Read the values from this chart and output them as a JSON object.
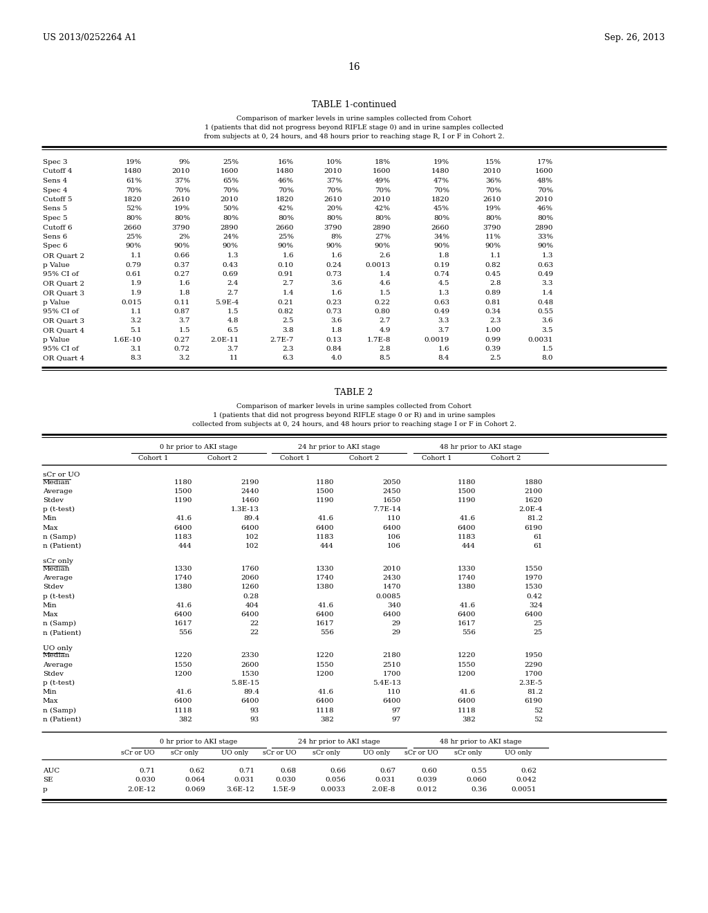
{
  "header_left": "US 2013/0252264 A1",
  "header_right": "Sep. 26, 2013",
  "page_number": "16",
  "table1_title": "TABLE 1-continued",
  "table1_subtitle_lines": [
    "Comparison of marker levels in urine samples collected from Cohort",
    "1 (patients that did not progress beyond RIFLE stage 0) and in urine samples collected",
    "from subjects at 0, 24 hours, and 48 hours prior to reaching stage R, I or F in Cohort 2."
  ],
  "table1_rows": [
    [
      "Spec 3",
      "19%",
      "9%",
      "25%",
      "16%",
      "10%",
      "18%",
      "19%",
      "15%",
      "17%"
    ],
    [
      "Cutoff 4",
      "1480",
      "2010",
      "1600",
      "1480",
      "2010",
      "1600",
      "1480",
      "2010",
      "1600"
    ],
    [
      "Sens 4",
      "61%",
      "37%",
      "65%",
      "46%",
      "37%",
      "49%",
      "47%",
      "36%",
      "48%"
    ],
    [
      "Spec 4",
      "70%",
      "70%",
      "70%",
      "70%",
      "70%",
      "70%",
      "70%",
      "70%",
      "70%"
    ],
    [
      "Cutoff 5",
      "1820",
      "2610",
      "2010",
      "1820",
      "2610",
      "2010",
      "1820",
      "2610",
      "2010"
    ],
    [
      "Sens 5",
      "52%",
      "19%",
      "50%",
      "42%",
      "20%",
      "42%",
      "45%",
      "19%",
      "46%"
    ],
    [
      "Spec 5",
      "80%",
      "80%",
      "80%",
      "80%",
      "80%",
      "80%",
      "80%",
      "80%",
      "80%"
    ],
    [
      "Cutoff 6",
      "2660",
      "3790",
      "2890",
      "2660",
      "3790",
      "2890",
      "2660",
      "3790",
      "2890"
    ],
    [
      "Sens 6",
      "25%",
      "2%",
      "24%",
      "25%",
      "8%",
      "27%",
      "34%",
      "11%",
      "33%"
    ],
    [
      "Spec 6",
      "90%",
      "90%",
      "90%",
      "90%",
      "90%",
      "90%",
      "90%",
      "90%",
      "90%"
    ],
    [
      "OR Quart 2",
      "1.1",
      "0.66",
      "1.3",
      "1.6",
      "1.6",
      "2.6",
      "1.8",
      "1.1",
      "1.3"
    ],
    [
      "p Value",
      "0.79",
      "0.37",
      "0.43",
      "0.10",
      "0.24",
      "0.0013",
      "0.19",
      "0.82",
      "0.63"
    ],
    [
      "95% CI of",
      "0.61",
      "0.27",
      "0.69",
      "0.91",
      "0.73",
      "1.4",
      "0.74",
      "0.45",
      "0.49"
    ],
    [
      "OR Quart 2",
      "1.9",
      "1.6",
      "2.4",
      "2.7",
      "3.6",
      "4.6",
      "4.5",
      "2.8",
      "3.3"
    ],
    [
      "OR Quart 3",
      "1.9",
      "1.8",
      "2.7",
      "1.4",
      "1.6",
      "1.5",
      "1.3",
      "0.89",
      "1.4"
    ],
    [
      "p Value",
      "0.015",
      "0.11",
      "5.9E-4",
      "0.21",
      "0.23",
      "0.22",
      "0.63",
      "0.81",
      "0.48"
    ],
    [
      "95% CI of",
      "1.1",
      "0.87",
      "1.5",
      "0.82",
      "0.73",
      "0.80",
      "0.49",
      "0.34",
      "0.55"
    ],
    [
      "OR Quart 3",
      "3.2",
      "3.7",
      "4.8",
      "2.5",
      "3.6",
      "2.7",
      "3.3",
      "2.3",
      "3.6"
    ],
    [
      "OR Quart 4",
      "5.1",
      "1.5",
      "6.5",
      "3.8",
      "1.8",
      "4.9",
      "3.7",
      "1.00",
      "3.5"
    ],
    [
      "p Value",
      "1.6E-10",
      "0.27",
      "2.0E-11",
      "2.7E-7",
      "0.13",
      "1.7E-8",
      "0.0019",
      "0.99",
      "0.0031"
    ],
    [
      "95% CI of",
      "3.1",
      "0.72",
      "3.7",
      "2.3",
      "0.84",
      "2.8",
      "1.6",
      "0.39",
      "1.5"
    ],
    [
      "OR Quart 4",
      "8.3",
      "3.2",
      "11",
      "6.3",
      "4.0",
      "8.5",
      "8.4",
      "2.5",
      "8.0"
    ]
  ],
  "table2_title": "TABLE 2",
  "table2_subtitle_lines": [
    "Comparison of marker levels in urine samples collected from Cohort",
    "1 (patients that did not progress beyond RIFLE stage 0 or R) and in urine samples",
    "collected from subjects at 0, 24 hours, and 48 hours prior to reaching stage I or F in Cohort 2."
  ],
  "table2_group_headers": [
    "0 hr prior to AKI stage",
    "24 hr prior to AKI stage",
    "48 hr prior to AKI stage"
  ],
  "table2_cohort_headers": [
    "Cohort 1",
    "Cohort 2",
    "Cohort 1",
    "Cohort 2",
    "Cohort 1",
    "Cohort 2"
  ],
  "table2_sections": [
    {
      "name": "sCr or UO",
      "rows": [
        [
          "Median",
          "1180",
          "2190",
          "1180",
          "2050",
          "1180",
          "1880"
        ],
        [
          "Average",
          "1500",
          "2440",
          "1500",
          "2450",
          "1500",
          "2100"
        ],
        [
          "Stdev",
          "1190",
          "1460",
          "1190",
          "1650",
          "1190",
          "1620"
        ],
        [
          "p (t-test)",
          "",
          "1.3E-13",
          "",
          "7.7E-14",
          "",
          "2.0E-4"
        ],
        [
          "Min",
          "41.6",
          "89.4",
          "41.6",
          "110",
          "41.6",
          "81.2"
        ],
        [
          "Max",
          "6400",
          "6400",
          "6400",
          "6400",
          "6400",
          "6190"
        ],
        [
          "n (Samp)",
          "1183",
          "102",
          "1183",
          "106",
          "1183",
          "61"
        ],
        [
          "n (Patient)",
          "444",
          "102",
          "444",
          "106",
          "444",
          "61"
        ]
      ]
    },
    {
      "name": "sCr only",
      "rows": [
        [
          "Median",
          "1330",
          "1760",
          "1330",
          "2010",
          "1330",
          "1550"
        ],
        [
          "Average",
          "1740",
          "2060",
          "1740",
          "2430",
          "1740",
          "1970"
        ],
        [
          "Stdev",
          "1380",
          "1260",
          "1380",
          "1470",
          "1380",
          "1530"
        ],
        [
          "p (t-test)",
          "",
          "0.28",
          "",
          "0.0085",
          "",
          "0.42"
        ],
        [
          "Min",
          "41.6",
          "404",
          "41.6",
          "340",
          "41.6",
          "324"
        ],
        [
          "Max",
          "6400",
          "6400",
          "6400",
          "6400",
          "6400",
          "6400"
        ],
        [
          "n (Samp)",
          "1617",
          "22",
          "1617",
          "29",
          "1617",
          "25"
        ],
        [
          "n (Patient)",
          "556",
          "22",
          "556",
          "29",
          "556",
          "25"
        ]
      ]
    },
    {
      "name": "UO only",
      "rows": [
        [
          "Median",
          "1220",
          "2330",
          "1220",
          "2180",
          "1220",
          "1950"
        ],
        [
          "Average",
          "1550",
          "2600",
          "1550",
          "2510",
          "1550",
          "2290"
        ],
        [
          "Stdev",
          "1200",
          "1530",
          "1200",
          "1700",
          "1200",
          "1700"
        ],
        [
          "p (t-test)",
          "",
          "5.8E-15",
          "",
          "5.4E-13",
          "",
          "2.3E-5"
        ],
        [
          "Min",
          "41.6",
          "89.4",
          "41.6",
          "110",
          "41.6",
          "81.2"
        ],
        [
          "Max",
          "6400",
          "6400",
          "6400",
          "6400",
          "6400",
          "6190"
        ],
        [
          "n (Samp)",
          "1118",
          "93",
          "1118",
          "97",
          "1118",
          "52"
        ],
        [
          "n (Patient)",
          "382",
          "93",
          "382",
          "97",
          "382",
          "52"
        ]
      ]
    }
  ],
  "table2_auc_group_headers": [
    "0 hr prior to AKI stage",
    "24 hr prior to AKI stage",
    "48 hr prior to AKI stage"
  ],
  "table2_auc_subheaders": [
    "sCr or UO",
    "sCr only",
    "UO only",
    "sCr or UO",
    "sCr only",
    "UO only",
    "sCr or UO",
    "sCr only",
    "UO only"
  ],
  "table2_auc_rows": [
    [
      "AUC",
      "0.71",
      "0.62",
      "0.71",
      "0.68",
      "0.66",
      "0.67",
      "0.60",
      "0.55",
      "0.62"
    ],
    [
      "SE",
      "0.030",
      "0.064",
      "0.031",
      "0.030",
      "0.056",
      "0.031",
      "0.039",
      "0.060",
      "0.042"
    ],
    [
      "p",
      "2.0E-12",
      "0.069",
      "3.6E-12",
      "1.5E-9",
      "0.0033",
      "2.0E-8",
      "0.012",
      "0.36",
      "0.0051"
    ]
  ]
}
